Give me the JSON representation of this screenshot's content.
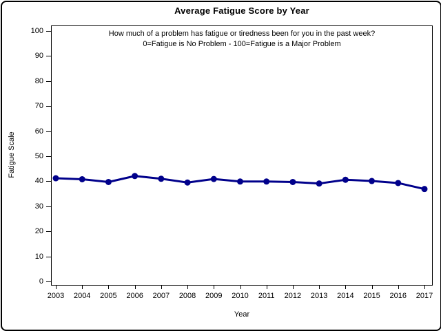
{
  "page": {
    "background_color": "#ffffff",
    "border_color": "#000000",
    "text_color": "#000000"
  },
  "chart_data": {
    "type": "line",
    "title": "Average Fatigue Score by Year",
    "subtitle_lines": [
      "How much of a problem has fatigue or tiredness been for you in the past week?",
      "0=Fatigue is No Problem - 100=Fatigue is a Major Problem"
    ],
    "xlabel": "Year",
    "ylabel": "Fatigue Scale",
    "x": [
      2003,
      2004,
      2005,
      2006,
      2007,
      2008,
      2009,
      2010,
      2011,
      2012,
      2013,
      2014,
      2015,
      2016,
      2017
    ],
    "values": [
      41.2,
      40.8,
      39.7,
      42.1,
      41.0,
      39.5,
      40.9,
      39.9,
      39.9,
      39.7,
      39.1,
      40.6,
      40.1,
      39.3,
      36.9
    ],
    "ylim": [
      0,
      100
    ],
    "yticks": [
      0,
      10,
      20,
      30,
      40,
      50,
      60,
      70,
      80,
      90,
      100
    ],
    "grid": false,
    "legend": "none",
    "line_color": "#00008B",
    "marker": "filled-circle"
  }
}
